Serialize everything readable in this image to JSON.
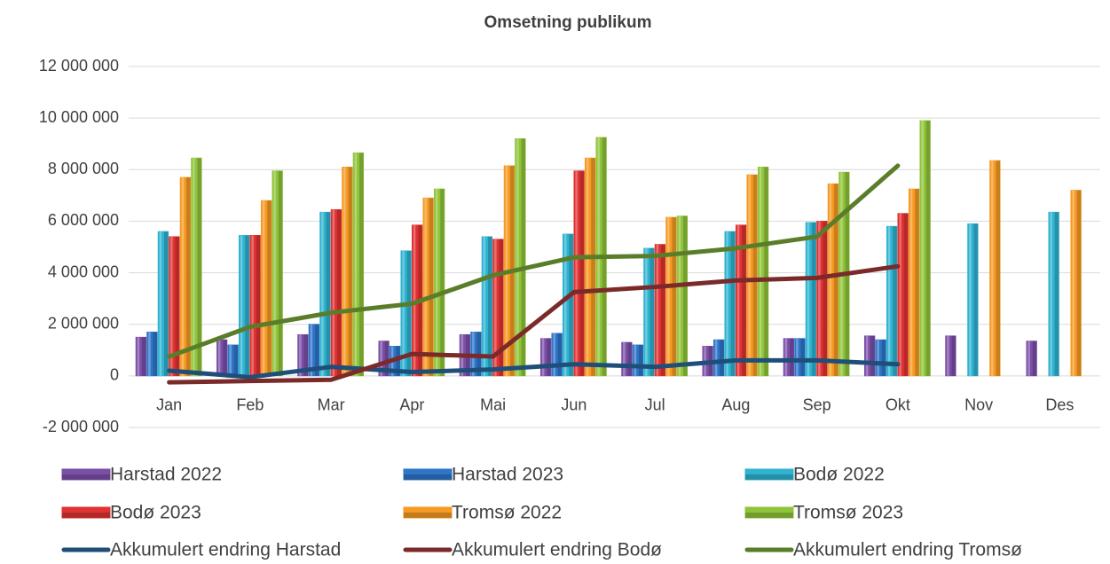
{
  "chart_data": {
    "type": "bar",
    "title": "Omsetning publikum",
    "categories": [
      "Jan",
      "Feb",
      "Mar",
      "Apr",
      "Mai",
      "Jun",
      "Jul",
      "Aug",
      "Sep",
      "Okt",
      "Nov",
      "Des"
    ],
    "ylim": [
      -2000000,
      12000000
    ],
    "yticks": [
      {
        "value": -2000000,
        "label": "-2 000 000"
      },
      0,
      {
        "value": 2000000,
        "label": "2 000 000"
      },
      {
        "value": 4000000,
        "label": "4 000 000"
      },
      {
        "value": 6000000,
        "label": "6 000 000"
      },
      {
        "value": 8000000,
        "label": "8 000 000"
      },
      {
        "value": 10000000,
        "label": "10 000 000"
      },
      {
        "value": 12000000,
        "label": "12 000 000"
      }
    ],
    "grid": true,
    "legend": "bottom",
    "series": [
      {
        "name": "Harstad 2022",
        "type": "bar",
        "color": "#7b4fa8",
        "values": [
          1500000,
          1400000,
          1600000,
          1350000,
          1600000,
          1450000,
          1300000,
          1150000,
          1450000,
          1550000,
          1550000,
          1350000
        ]
      },
      {
        "name": "Harstad 2023",
        "type": "bar",
        "color": "#2e75c8",
        "values": [
          1700000,
          1200000,
          2000000,
          1150000,
          1700000,
          1650000,
          1200000,
          1400000,
          1450000,
          1400000,
          null,
          null
        ]
      },
      {
        "name": "Bodø 2022",
        "type": "bar",
        "color": "#2fb3d0",
        "values": [
          5600000,
          5450000,
          6350000,
          4850000,
          5400000,
          5500000,
          4950000,
          5600000,
          5950000,
          5800000,
          5900000,
          6350000
        ]
      },
      {
        "name": "Bodø 2023",
        "type": "bar",
        "color": "#e03232",
        "values": [
          5400000,
          5450000,
          6450000,
          5850000,
          5300000,
          7950000,
          5100000,
          5850000,
          6000000,
          6300000,
          null,
          null
        ]
      },
      {
        "name": "Tromsø 2022",
        "type": "bar",
        "color": "#f59a23",
        "values": [
          7700000,
          6800000,
          8100000,
          6900000,
          8150000,
          8450000,
          6150000,
          7800000,
          7450000,
          7250000,
          8350000,
          7200000
        ]
      },
      {
        "name": "Tromsø 2023",
        "type": "bar",
        "color": "#8fc43a",
        "values": [
          8450000,
          7950000,
          8650000,
          7250000,
          9200000,
          9250000,
          6200000,
          8100000,
          7900000,
          9900000,
          null,
          null
        ]
      },
      {
        "name": "Akkumulert endring Harstad",
        "type": "line",
        "color": "#1f4e79",
        "values": [
          200000,
          -50000,
          350000,
          150000,
          250000,
          450000,
          350000,
          600000,
          600000,
          450000,
          null,
          null
        ]
      },
      {
        "name": "Akkumulert endring Bodø",
        "type": "line",
        "color": "#7b2a2a",
        "values": [
          -250000,
          -200000,
          -150000,
          850000,
          750000,
          3250000,
          3450000,
          3700000,
          3800000,
          4250000,
          null,
          null
        ]
      },
      {
        "name": "Akkumulert endring Tromsø",
        "type": "line",
        "color": "#5a7d2a",
        "values": [
          750000,
          1900000,
          2450000,
          2800000,
          3900000,
          4600000,
          4650000,
          4950000,
          5400000,
          8150000,
          null,
          null
        ]
      }
    ]
  }
}
